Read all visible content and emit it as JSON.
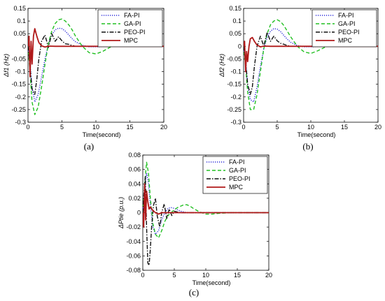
{
  "legend_entries": [
    {
      "name": "FA-PI",
      "color": "#2a2ad8",
      "dash": "1.2,1.8",
      "width": 1.4
    },
    {
      "name": "GA-PI",
      "color": "#22c022",
      "dash": "5,3",
      "width": 1.4
    },
    {
      "name": "PEO-PI",
      "color": "#111111",
      "dash": "6,2,1.5,2",
      "width": 1.4
    },
    {
      "name": "MPC",
      "color": "#b01818",
      "dash": "",
      "width": 1.8
    }
  ],
  "chart_data": [
    {
      "type": "line",
      "panel": "a",
      "caption": "(a)",
      "xlabel": "Time(second)",
      "ylabel": "Δf1 (Hz)",
      "xlim": [
        0,
        20
      ],
      "ylim": [
        -0.3,
        0.15
      ],
      "xticks": [
        0,
        5,
        10,
        15,
        20
      ],
      "xtick_labels": [
        "0",
        "5",
        "10",
        "15",
        "20"
      ],
      "yticks": [
        -0.3,
        -0.25,
        -0.2,
        -0.15,
        -0.1,
        -0.05,
        0,
        0.05,
        0.1,
        0.15
      ],
      "ytick_labels": [
        "-0.3",
        "-0.25",
        "-0.2",
        "-0.15",
        "-0.1",
        "-0.05",
        "0",
        "0.05",
        "0.1",
        "0.15"
      ],
      "legend": "top-right",
      "series": [
        {
          "name": "FA-PI",
          "x": [
            0,
            0.3,
            0.6,
            1,
            1.5,
            2,
            2.5,
            3,
            3.5,
            4,
            4.5,
            5,
            5.5,
            6,
            6.5,
            7,
            8,
            9,
            10,
            12,
            15,
            20
          ],
          "y": [
            0,
            -0.07,
            -0.16,
            -0.22,
            -0.19,
            -0.12,
            -0.05,
            0.01,
            0.045,
            0.065,
            0.072,
            0.07,
            0.06,
            0.045,
            0.03,
            0.018,
            0.004,
            -0.002,
            -0.002,
            0,
            0,
            0
          ]
        },
        {
          "name": "GA-PI",
          "x": [
            0,
            0.3,
            0.6,
            1,
            1.5,
            2,
            2.5,
            3,
            3.5,
            4,
            4.5,
            5,
            5.5,
            6,
            6.5,
            7,
            8,
            9,
            10,
            11,
            12,
            13,
            14,
            15,
            17,
            20
          ],
          "y": [
            0,
            -0.1,
            -0.22,
            -0.27,
            -0.24,
            -0.16,
            -0.07,
            0.01,
            0.06,
            0.09,
            0.105,
            0.108,
            0.1,
            0.085,
            0.065,
            0.04,
            0.0,
            -0.025,
            -0.03,
            -0.02,
            -0.005,
            0.01,
            0.012,
            0.008,
            0.0,
            0
          ]
        },
        {
          "name": "PEO-PI",
          "x": [
            0,
            0.3,
            0.6,
            1,
            1.3,
            1.6,
            2,
            2.5,
            3,
            3.5,
            4,
            4.5,
            5,
            5.5,
            6,
            6.5,
            7,
            8,
            10,
            20
          ],
          "y": [
            0,
            -0.08,
            -0.17,
            -0.19,
            -0.13,
            -0.05,
            0.02,
            0.045,
            -0.005,
            0.05,
            0.02,
            0.038,
            0.022,
            0.01,
            0.008,
            0.003,
            0.0,
            0.0,
            0,
            0
          ]
        },
        {
          "name": "MPC",
          "x": [
            0,
            0.15,
            0.3,
            0.45,
            0.6,
            0.8,
            1,
            1.3,
            1.6,
            2,
            2.5,
            3,
            4,
            20
          ],
          "y": [
            0,
            0.04,
            -0.12,
            0.02,
            -0.07,
            0.04,
            0.07,
            0.04,
            0.015,
            0.002,
            -0.003,
            0.001,
            0,
            0
          ]
        }
      ]
    },
    {
      "type": "line",
      "panel": "b",
      "caption": "(b)",
      "xlabel": "Time(second)",
      "ylabel": "Δf2 (Hz)",
      "xlim": [
        0,
        20
      ],
      "ylim": [
        -0.3,
        0.15
      ],
      "xticks": [
        0,
        5,
        10,
        15,
        20
      ],
      "xtick_labels": [
        "0",
        "5",
        "10",
        "15",
        "20"
      ],
      "yticks": [
        -0.3,
        -0.25,
        -0.2,
        -0.15,
        -0.1,
        -0.05,
        0,
        0.05,
        0.1,
        0.15
      ],
      "ytick_labels": [
        "-0.3",
        "-0.25",
        "-0.2",
        "-0.15",
        "-0.1",
        "-0.05",
        "0",
        "0.05",
        "0.1",
        "0.15"
      ],
      "legend": "top-right",
      "series": [
        {
          "name": "FA-PI",
          "x": [
            0,
            0.3,
            0.6,
            1,
            1.5,
            2,
            2.5,
            3,
            3.5,
            4,
            4.5,
            5,
            5.5,
            6,
            6.5,
            7,
            8,
            9,
            10,
            12,
            15,
            20
          ],
          "y": [
            0,
            -0.06,
            -0.15,
            -0.21,
            -0.22,
            -0.16,
            -0.08,
            -0.01,
            0.035,
            0.06,
            0.07,
            0.068,
            0.058,
            0.043,
            0.028,
            0.016,
            0.003,
            -0.002,
            -0.002,
            0,
            0,
            0
          ]
        },
        {
          "name": "GA-PI",
          "x": [
            0,
            0.3,
            0.6,
            1,
            1.5,
            2,
            2.5,
            3,
            3.5,
            4,
            4.5,
            5,
            5.5,
            6,
            6.5,
            7,
            8,
            9,
            10,
            11,
            12,
            13,
            14,
            15,
            17,
            20
          ],
          "y": [
            0,
            -0.08,
            -0.18,
            -0.25,
            -0.25,
            -0.19,
            -0.1,
            -0.01,
            0.05,
            0.085,
            0.1,
            0.105,
            0.098,
            0.082,
            0.06,
            0.038,
            0.0,
            -0.022,
            -0.028,
            -0.018,
            -0.005,
            0.008,
            0.01,
            0.006,
            0.0,
            0
          ]
        },
        {
          "name": "PEO-PI",
          "x": [
            0,
            0.3,
            0.6,
            1,
            1.3,
            1.6,
            2,
            2.5,
            3,
            3.5,
            4,
            4.5,
            5,
            5.5,
            6,
            6.5,
            7,
            8,
            10,
            20
          ],
          "y": [
            0,
            -0.06,
            -0.15,
            -0.19,
            -0.16,
            -0.08,
            0.0,
            0.04,
            0.0,
            0.055,
            0.02,
            0.04,
            0.022,
            0.012,
            0.008,
            0.003,
            0.0,
            0.0,
            0,
            0
          ]
        },
        {
          "name": "MPC",
          "x": [
            0,
            0.15,
            0.3,
            0.45,
            0.6,
            0.8,
            1,
            1.3,
            1.6,
            2,
            2.5,
            3,
            4,
            20
          ],
          "y": [
            0,
            0.02,
            -0.1,
            -0.02,
            -0.06,
            0.0,
            0.03,
            0.035,
            0.02,
            0.005,
            -0.002,
            0.001,
            0,
            0
          ]
        }
      ]
    },
    {
      "type": "line",
      "panel": "c",
      "caption": "(c)",
      "xlabel": "Time(second)",
      "ylabel": "ΔPtie (p.u.)",
      "xlim": [
        0,
        20
      ],
      "ylim": [
        -0.08,
        0.08
      ],
      "xticks": [
        0,
        5,
        10,
        15,
        20
      ],
      "xtick_labels": [
        "0",
        "5",
        "10",
        "15",
        "20"
      ],
      "yticks": [
        -0.08,
        -0.06,
        -0.04,
        -0.02,
        0,
        0.02,
        0.04,
        0.06,
        0.08
      ],
      "ytick_labels": [
        "-0.08",
        "-0.06",
        "-0.04",
        "-0.02",
        "0",
        "0.02",
        "0.04",
        "0.06",
        "0.08"
      ],
      "legend": "top-right",
      "series": [
        {
          "name": "FA-PI",
          "x": [
            0,
            0.3,
            0.6,
            0.9,
            1.2,
            1.6,
            2,
            2.5,
            3,
            3.5,
            4,
            4.5,
            5,
            5.5,
            6,
            6.5,
            7,
            8,
            10,
            13,
            20
          ],
          "y": [
            0,
            0.03,
            0.055,
            0.04,
            0.01,
            -0.02,
            -0.03,
            -0.025,
            -0.01,
            0.0,
            0.006,
            0.007,
            0.006,
            0.004,
            0.002,
            0.001,
            0.0,
            0,
            0,
            0,
            0
          ]
        },
        {
          "name": "GA-PI",
          "x": [
            0,
            0.3,
            0.6,
            0.9,
            1.2,
            1.6,
            2,
            2.5,
            3,
            3.5,
            4,
            4.5,
            5,
            5.5,
            6,
            6.5,
            7,
            7.5,
            8,
            9,
            10,
            11,
            12,
            14,
            20
          ],
          "y": [
            0,
            0.04,
            0.07,
            0.055,
            0.02,
            -0.015,
            -0.03,
            -0.035,
            -0.025,
            -0.012,
            -0.004,
            0.0,
            0.004,
            0.007,
            0.009,
            0.011,
            0.011,
            0.009,
            0.006,
            0.001,
            -0.002,
            -0.002,
            -0.001,
            0,
            0
          ]
        },
        {
          "name": "PEO-PI",
          "x": [
            0,
            0.2,
            0.4,
            0.6,
            0.8,
            1,
            1.2,
            1.4,
            1.7,
            2,
            2.3,
            2.7,
            3,
            3.4,
            3.8,
            4.2,
            4.6,
            5,
            5.5,
            6,
            7,
            8,
            10,
            20
          ],
          "y": [
            0,
            0.03,
            0.05,
            -0.02,
            -0.07,
            -0.073,
            -0.05,
            -0.02,
            0.01,
            0.02,
            -0.005,
            -0.02,
            0.0,
            0.012,
            -0.008,
            0.005,
            -0.004,
            0.002,
            0.001,
            0,
            0,
            0,
            0,
            0
          ]
        },
        {
          "name": "MPC",
          "x": [
            0,
            0.15,
            0.3,
            0.45,
            0.6,
            0.8,
            1,
            1.2,
            1.5,
            2,
            2.5,
            3,
            4,
            20
          ],
          "y": [
            0,
            -0.02,
            0.04,
            -0.01,
            0.03,
            0.015,
            0.005,
            0.008,
            0.004,
            0.0,
            -0.002,
            0.0,
            0,
            0
          ]
        }
      ]
    }
  ]
}
